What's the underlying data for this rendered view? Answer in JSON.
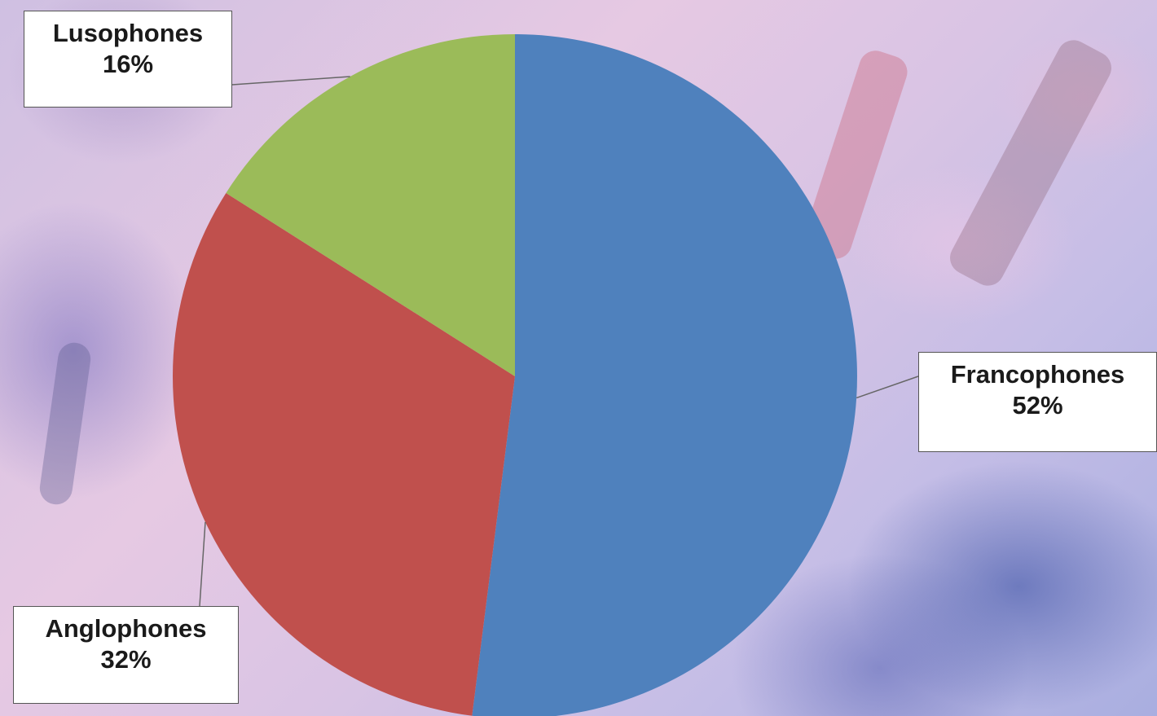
{
  "chart_data": {
    "type": "pie",
    "title": "",
    "slices": [
      {
        "label": "Francophones",
        "value": 52,
        "value_label": "52%",
        "color": "#4f81bd"
      },
      {
        "label": "Anglophones",
        "value": 32,
        "value_label": "32%",
        "color": "#c0504d"
      },
      {
        "label": "Lusophones",
        "value": 16,
        "value_label": "16%",
        "color": "#9bbb59"
      }
    ],
    "start_angle_deg": 0,
    "direction": "clockwise",
    "legend": "none",
    "data_labels": "callouts"
  }
}
